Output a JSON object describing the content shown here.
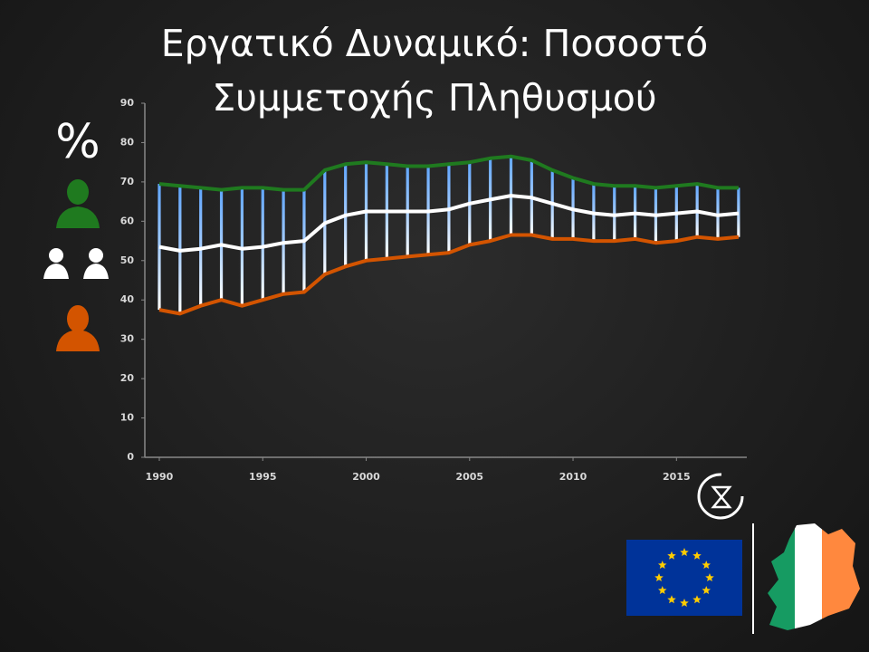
{
  "chart_data": {
    "type": "line",
    "title": "Εργατικό Δυναμικό: Ποσοστό Συμμετοχής Πληθυσμού",
    "y_label": "%",
    "x": [
      1990,
      1991,
      1992,
      1993,
      1994,
      1995,
      1996,
      1997,
      1998,
      1999,
      2000,
      2001,
      2002,
      2003,
      2004,
      2005,
      2006,
      2007,
      2008,
      2009,
      2010,
      2011,
      2012,
      2013,
      2014,
      2015,
      2016,
      2017,
      2018
    ],
    "series": [
      {
        "color": "#1f7a1f",
        "values": [
          69.5,
          69,
          68.5,
          68,
          68.5,
          68.5,
          68,
          68,
          73,
          74.5,
          75,
          74.5,
          74,
          74,
          74.5,
          75,
          76,
          76.5,
          75.5,
          73,
          71,
          69.5,
          69,
          69,
          68.5,
          69,
          69.5,
          68.5,
          68.5
        ]
      },
      {
        "color": "#ffffff",
        "values": [
          53.5,
          52.5,
          53,
          54,
          53,
          53.5,
          54.5,
          55,
          59.5,
          61.5,
          62.5,
          62.5,
          62.5,
          62.5,
          63,
          64.5,
          65.5,
          66.5,
          66,
          64.5,
          63,
          62,
          61.5,
          62,
          61.5,
          62,
          62.5,
          61.5,
          62
        ]
      },
      {
        "color": "#d35400",
        "values": [
          37.5,
          36.5,
          38.5,
          40,
          38.5,
          40,
          41.5,
          42,
          46.5,
          48.5,
          50,
          50.5,
          51,
          51.5,
          52,
          54,
          55,
          56.5,
          56.5,
          55.5,
          55.5,
          55,
          55,
          55.5,
          54.5,
          55,
          56,
          55.5,
          56
        ]
      }
    ],
    "range_bars": true,
    "xlim": [
      1989.3,
      2018.4
    ],
    "xticks": [
      1990,
      1995,
      2000,
      2005,
      2010,
      2015
    ],
    "ylim": [
      0,
      90
    ],
    "yticks": [
      0,
      10,
      20,
      30,
      40,
      50,
      60,
      70,
      80,
      90
    ],
    "grid": false
  }
}
